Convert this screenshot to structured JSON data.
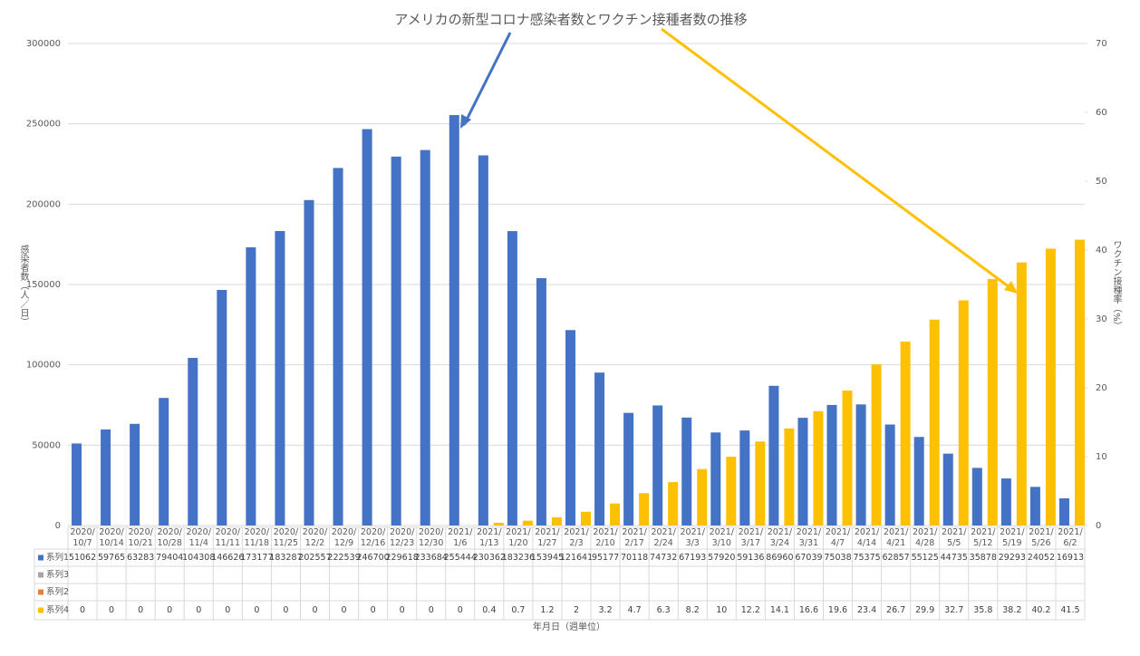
{
  "chart_data": {
    "type": "bar",
    "title": "アメリカの新型コロナ感染者数とワクチン接種者数の推移",
    "y_label": "感染者数（人／日）",
    "y2_label": "ワクチン接種率（%）",
    "x_label": "年月日（週単位）",
    "categories": [
      "2020/10/7",
      "2020/10/14",
      "2020/10/21",
      "2020/10/28",
      "2020/11/4",
      "2020/11/11",
      "2020/11/18",
      "2020/11/25",
      "2020/12/2",
      "2020/12/9",
      "2020/12/16",
      "2020/12/23",
      "2020/12/30",
      "2021/1/6",
      "2021/1/13",
      "2021/1/20",
      "2021/1/27",
      "2021/2/3",
      "2021/2/10",
      "2021/2/17",
      "2021/2/24",
      "2021/3/3",
      "2021/3/10",
      "2021/3/17",
      "2021/3/24",
      "2021/3/31",
      "2021/4/7",
      "2021/4/14",
      "2021/4/21",
      "2021/4/28",
      "2021/5/5",
      "2021/5/12",
      "2021/5/19",
      "2021/5/26",
      "2021/6/2"
    ],
    "series": [
      {
        "name": "系列1",
        "color": "#4472c4",
        "values": [
          51062,
          59765,
          63283,
          79404,
          104308,
          146626,
          173177,
          183287,
          202557,
          222539,
          246700,
          229618,
          233684,
          255444,
          230362,
          183236,
          153945,
          121641,
          95177,
          70118,
          74732,
          67193,
          57920,
          59136,
          86960,
          67039,
          75038,
          75375,
          62857,
          55125,
          44735,
          35878,
          29293,
          24052,
          16913
        ]
      },
      {
        "name": "系列3",
        "color": "#a5a5a5",
        "values": [
          null,
          null,
          null,
          null,
          null,
          null,
          null,
          null,
          null,
          null,
          null,
          null,
          null,
          null,
          null,
          null,
          null,
          null,
          null,
          null,
          null,
          null,
          null,
          null,
          null,
          null,
          null,
          null,
          null,
          null,
          null,
          null,
          null,
          null,
          null
        ]
      },
      {
        "name": "系列2",
        "color": "#ed7d31",
        "values": [
          null,
          null,
          null,
          null,
          null,
          null,
          null,
          null,
          null,
          null,
          null,
          null,
          null,
          null,
          null,
          null,
          null,
          null,
          null,
          null,
          null,
          null,
          null,
          null,
          null,
          null,
          null,
          null,
          null,
          null,
          null,
          null,
          null,
          null,
          null
        ]
      },
      {
        "name": "系列4",
        "color": "#ffc000",
        "axis": "y2",
        "values": [
          0,
          0,
          0,
          0,
          0,
          0,
          0,
          0,
          0,
          0,
          0,
          0,
          0,
          0,
          0.4,
          0.7,
          1.2,
          2,
          3.2,
          4.7,
          6.3,
          8.2,
          10,
          12.2,
          14.1,
          16.6,
          19.6,
          23.4,
          26.7,
          29.9,
          32.7,
          35.8,
          38.2,
          40.2,
          41.5
        ]
      }
    ],
    "ylim": [
      0,
      300000
    ],
    "yticks": [
      0,
      50000,
      100000,
      150000,
      200000,
      250000,
      300000
    ],
    "y2lim": [
      0,
      70
    ],
    "y2ticks": [
      0,
      10,
      20,
      30,
      40,
      50,
      60,
      70
    ],
    "grid": true
  }
}
